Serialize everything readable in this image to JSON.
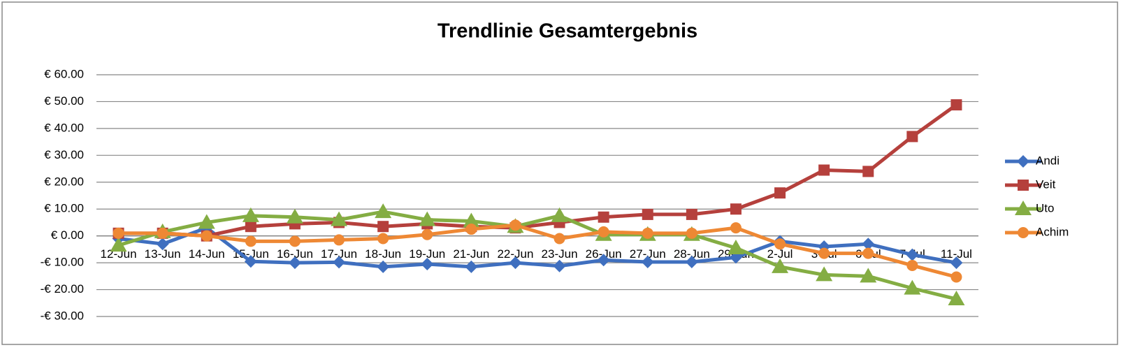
{
  "chart_data": {
    "type": "line",
    "title": "Trendlinie Gesamtergebnis",
    "categories": [
      "12-Jun",
      "13-Jun",
      "14-Jun",
      "15-Jun",
      "16-Jun",
      "17-Jun",
      "18-Jun",
      "19-Jun",
      "21-Jun",
      "22-Jun",
      "23-Jun",
      "26-Jun",
      "27-Jun",
      "28-Jun",
      "29-Jun",
      "2-Jul",
      "3-Jul",
      "6-Jul",
      "7-Jul",
      "11-Jul"
    ],
    "series": [
      {
        "name": "Andi",
        "color": "#3f6fbf",
        "marker": "diamond",
        "values": [
          -1,
          -3,
          3,
          -9.5,
          -10,
          -9.8,
          -11.5,
          -10.5,
          -11.5,
          -10,
          -11.2,
          -9,
          -9.7,
          -9.7,
          -8,
          -2,
          -4,
          -3,
          -7,
          -10
        ]
      },
      {
        "name": "Veit",
        "color": "#b5403c",
        "marker": "square",
        "values": [
          1,
          1,
          0,
          3.5,
          4.5,
          5,
          3.5,
          4.5,
          3.5,
          3,
          5,
          7,
          8,
          8,
          10,
          16,
          24.5,
          24,
          37,
          48.8
        ]
      },
      {
        "name": "Uto",
        "color": "#84ad43",
        "marker": "triangle",
        "values": [
          -3.5,
          1.5,
          5,
          7.5,
          7,
          6,
          9,
          6,
          5.5,
          3.5,
          7.5,
          0.5,
          0.5,
          0.5,
          -4.5,
          -11.5,
          -14.5,
          -15,
          -19.5,
          -23.5
        ]
      },
      {
        "name": "Achim",
        "color": "#ee8834",
        "marker": "circle",
        "values": [
          1,
          1,
          0,
          -2,
          -2,
          -1.5,
          -1,
          0.5,
          2.5,
          4,
          -1,
          1.5,
          1,
          1,
          3,
          -3,
          -6.5,
          -6.5,
          -11,
          -15.3
        ]
      }
    ],
    "ylim": [
      -30,
      60
    ],
    "yticks": [
      {
        "value": -30,
        "label": "-€ 30.00"
      },
      {
        "value": -20,
        "label": "-€ 20.00"
      },
      {
        "value": -10,
        "label": "-€ 10.00"
      },
      {
        "value": 0,
        "label": "€ 0.00"
      },
      {
        "value": 10,
        "label": "€ 10.00"
      },
      {
        "value": 20,
        "label": "€ 20.00"
      },
      {
        "value": 30,
        "label": "€ 30.00"
      },
      {
        "value": 40,
        "label": "€ 40.00"
      },
      {
        "value": 50,
        "label": "€ 50.00"
      },
      {
        "value": 60,
        "label": "€ 60.00"
      }
    ],
    "grid": true,
    "legend": "right"
  }
}
